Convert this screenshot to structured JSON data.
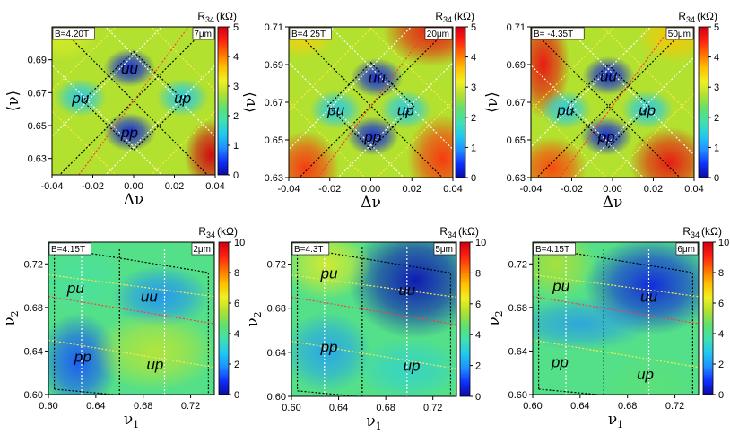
{
  "colors": {
    "colormap": [
      "#0a0aa0",
      "#1030ff",
      "#1e90ff",
      "#20c8f0",
      "#40e0b0",
      "#60e070",
      "#b0e030",
      "#f0f020",
      "#ffc000",
      "#ff7000",
      "#ff2010",
      "#d00010"
    ],
    "dashed_black": "#000000",
    "dashed_white": "#ffffff",
    "dashed_yellow": "#ffe84a",
    "dashed_red": "#ff3a3a"
  },
  "chart_data": [
    {
      "type": "heatmap",
      "panel": "top-left",
      "field_label": "B=4.20T",
      "size_label": "7μm",
      "xlabel": "Δν",
      "ylabel": "⟨ν⟩",
      "xlim": [
        -0.04,
        0.04
      ],
      "ylim": [
        0.62,
        0.71
      ],
      "xticks": [
        "-0.04",
        "-0.02",
        "0.00",
        "0.02",
        "0.04"
      ],
      "xtick_values": [
        -0.04,
        -0.02,
        0,
        0.02,
        0.04
      ],
      "yticks": [
        "0.63",
        "0.65",
        "0.67",
        "0.69"
      ],
      "ytick_values": [
        0.63,
        0.65,
        0.67,
        0.69
      ],
      "colorbar": {
        "label": "R",
        "label_sub": "34",
        "unit": "(kΩ)",
        "min": 0,
        "max": 5,
        "ticks": [
          "0",
          "1",
          "2",
          "3",
          "4",
          "5"
        ]
      },
      "regions": [
        {
          "label": "pu",
          "x": -0.026,
          "y": 0.667
        },
        {
          "label": "uu",
          "x": -0.002,
          "y": 0.685
        },
        {
          "label": "up",
          "x": 0.024,
          "y": 0.667
        },
        {
          "label": "pp",
          "x": -0.002,
          "y": 0.646
        }
      ],
      "diamond": {
        "center": [
          0,
          0.665
        ],
        "half_width": 0.025,
        "half_height": 0.03
      }
    },
    {
      "type": "heatmap",
      "panel": "top-middle",
      "field_label": "B=4.25T",
      "size_label": "20μm",
      "xlabel": "Δν",
      "ylabel": "⟨ν⟩",
      "xlim": [
        -0.04,
        0.04
      ],
      "ylim": [
        0.63,
        0.71
      ],
      "xticks": [
        "-0.04",
        "-0.02",
        "0.00",
        "0.02",
        "0.04"
      ],
      "xtick_values": [
        -0.04,
        -0.02,
        0,
        0.02,
        0.04
      ],
      "yticks": [
        "0.63",
        "0.65",
        "0.67",
        "0.69",
        "0.71"
      ],
      "ytick_values": [
        0.63,
        0.65,
        0.67,
        0.69,
        0.71
      ],
      "colorbar": {
        "label": "R",
        "label_sub": "34",
        "unit": "(kΩ)",
        "min": 0,
        "max": 5,
        "ticks": [
          "0",
          "1",
          "2",
          "3",
          "4",
          "5"
        ]
      },
      "regions": [
        {
          "label": "pu",
          "x": -0.017,
          "y": 0.666
        },
        {
          "label": "uu",
          "x": 0.003,
          "y": 0.683
        },
        {
          "label": "up",
          "x": 0.017,
          "y": 0.666
        },
        {
          "label": "pp",
          "x": 0.001,
          "y": 0.652
        }
      ],
      "diamond": {
        "center": [
          0,
          0.668
        ],
        "half_width": 0.021,
        "half_height": 0.023
      }
    },
    {
      "type": "heatmap",
      "panel": "top-right",
      "field_label": "B= -4.35T",
      "size_label": "50μm",
      "xlabel": "Δν",
      "ylabel": "⟨ν⟩",
      "xlim": [
        -0.04,
        0.04
      ],
      "ylim": [
        0.63,
        0.71
      ],
      "xticks": [
        "-0.04",
        "-0.02",
        "0.00",
        "0.02",
        "0.04"
      ],
      "xtick_values": [
        -0.04,
        -0.02,
        0,
        0.02,
        0.04
      ],
      "yticks": [
        "0.63",
        "0.65",
        "0.67",
        "0.69",
        "0.71"
      ],
      "ytick_values": [
        0.63,
        0.65,
        0.67,
        0.69,
        0.71
      ],
      "colorbar": {
        "label": "R",
        "label_sub": "34",
        "unit": "(kΩ)",
        "min": 0,
        "max": 5,
        "ticks": [
          "0",
          "1",
          "2",
          "3",
          "4",
          "5"
        ]
      },
      "regions": [
        {
          "label": "pu",
          "x": -0.023,
          "y": 0.666
        },
        {
          "label": "uu",
          "x": -0.002,
          "y": 0.684
        },
        {
          "label": "up",
          "x": 0.017,
          "y": 0.666
        },
        {
          "label": "pp",
          "x": -0.003,
          "y": 0.652
        }
      ],
      "diamond": {
        "center": [
          -0.002,
          0.668
        ],
        "half_width": 0.02,
        "half_height": 0.022
      }
    },
    {
      "type": "heatmap",
      "panel": "bottom-left",
      "field_label": "B=4.15T",
      "size_label": "2μm",
      "xlabel": "ν",
      "xlabel_sub": "1",
      "ylabel": "ν",
      "ylabel_sub": "2",
      "xlim": [
        0.6,
        0.74
      ],
      "ylim": [
        0.6,
        0.74
      ],
      "xticks": [
        "0.60",
        "0.64",
        "0.68",
        "0.72"
      ],
      "xtick_values": [
        0.6,
        0.64,
        0.68,
        0.72
      ],
      "yticks": [
        "0.60",
        "0.64",
        "0.68",
        "0.72"
      ],
      "ytick_values": [
        0.6,
        0.64,
        0.68,
        0.72
      ],
      "colorbar": {
        "label": "R",
        "label_sub": "34",
        "unit": "(kΩ)",
        "min": 0,
        "max": 10,
        "ticks": [
          "0",
          "2",
          "4",
          "6",
          "8",
          "10"
        ]
      },
      "regions": [
        {
          "label": "pu",
          "x": 0.623,
          "y": 0.698
        },
        {
          "label": "uu",
          "x": 0.685,
          "y": 0.69
        },
        {
          "label": "pp",
          "x": 0.629,
          "y": 0.635
        },
        {
          "label": "up",
          "x": 0.69,
          "y": 0.628
        }
      ]
    },
    {
      "type": "heatmap",
      "panel": "bottom-middle",
      "field_label": "B=4.3T",
      "size_label": "5μm",
      "xlabel": "ν",
      "xlabel_sub": "1",
      "ylabel": "ν",
      "ylabel_sub": "2",
      "xlim": [
        0.6,
        0.74
      ],
      "ylim": [
        0.6,
        0.74
      ],
      "xticks": [
        "0.60",
        "0.64",
        "0.68",
        "0.72"
      ],
      "xtick_values": [
        0.6,
        0.64,
        0.68,
        0.72
      ],
      "yticks": [
        "0.60",
        "0.64",
        "0.68",
        "0.72"
      ],
      "ytick_values": [
        0.6,
        0.64,
        0.68,
        0.72
      ],
      "colorbar": {
        "label": "R",
        "label_sub": "34",
        "unit": "(kΩ)",
        "min": 0,
        "max": 10,
        "ticks": [
          "0",
          "2",
          "4",
          "6",
          "8",
          "10"
        ]
      },
      "regions": [
        {
          "label": "pu",
          "x": 0.632,
          "y": 0.712
        },
        {
          "label": "uu",
          "x": 0.698,
          "y": 0.697
        },
        {
          "label": "pp",
          "x": 0.632,
          "y": 0.645
        },
        {
          "label": "up",
          "x": 0.702,
          "y": 0.628
        }
      ]
    },
    {
      "type": "heatmap",
      "panel": "bottom-right",
      "field_label": "B=4.15T",
      "size_label": "6μm",
      "xlabel": "ν",
      "xlabel_sub": "1",
      "ylabel": "ν",
      "ylabel_sub": "2",
      "xlim": [
        0.6,
        0.74
      ],
      "ylim": [
        0.6,
        0.74
      ],
      "xticks": [
        "0.60",
        "0.64",
        "0.68",
        "0.72"
      ],
      "xtick_values": [
        0.6,
        0.64,
        0.68,
        0.72
      ],
      "yticks": [
        "0.60",
        "0.64",
        "0.68",
        "0.72"
      ],
      "ytick_values": [
        0.6,
        0.64,
        0.68,
        0.72
      ],
      "colorbar": {
        "label": "R",
        "label_sub": "34",
        "unit": "(kΩ)",
        "min": 0,
        "max": 10,
        "ticks": [
          "0",
          "2",
          "4",
          "6",
          "8",
          "10"
        ]
      },
      "regions": [
        {
          "label": "pu",
          "x": 0.624,
          "y": 0.7
        },
        {
          "label": "uu",
          "x": 0.698,
          "y": 0.69
        },
        {
          "label": "pp",
          "x": 0.623,
          "y": 0.63
        },
        {
          "label": "up",
          "x": 0.695,
          "y": 0.619
        }
      ]
    }
  ]
}
